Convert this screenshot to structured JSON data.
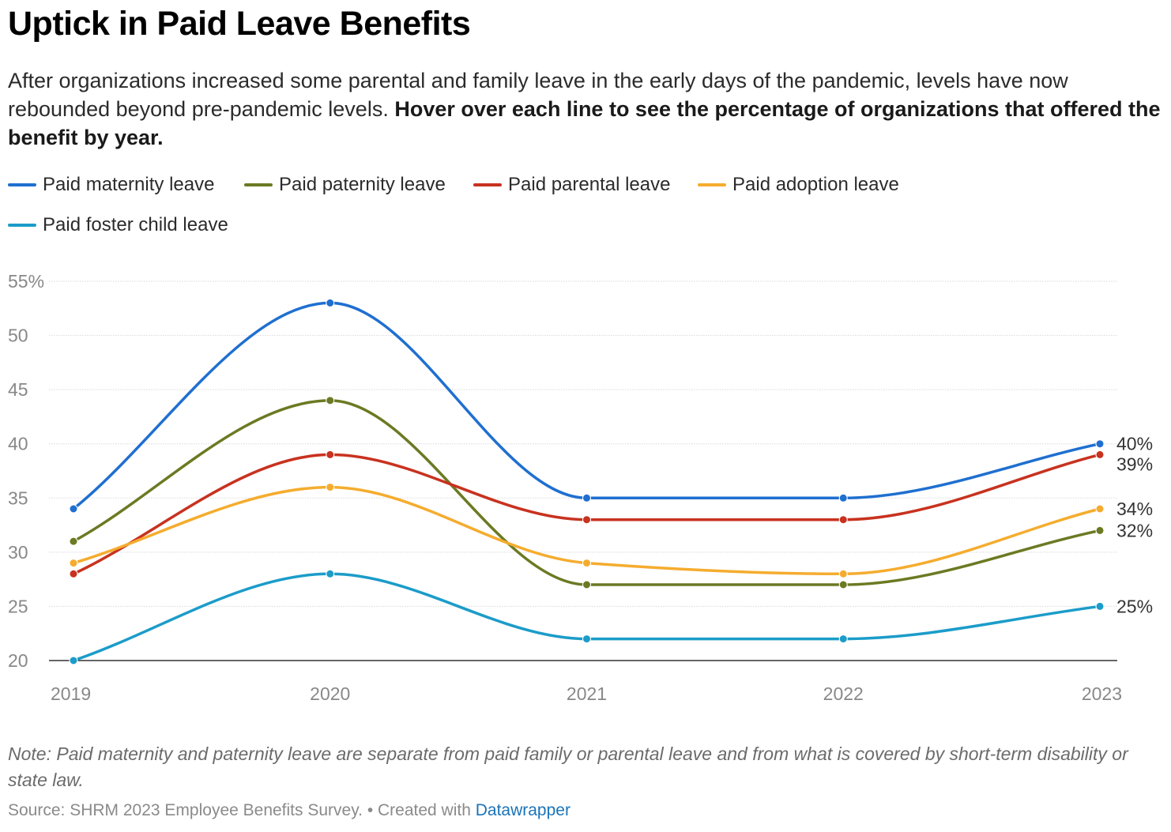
{
  "title": "Uptick in Paid Leave Benefits",
  "subtitle_plain": "After organizations increased some parental and family leave in the early days of the pandemic, levels have now rebounded beyond pre-pandemic levels. ",
  "subtitle_bold": "Hover over each line to see the percentage of organizations that offered the benefit by year.",
  "note": "Note: Paid maternity and paternity leave are separate from paid family or parental leave and from what is covered by short-term disability or state law.",
  "source_text": "Source: SHRM 2023 Employee Benefits Survey. • Created with ",
  "source_link": "Datawrapper",
  "chart_data": {
    "type": "line",
    "x": [
      "2019",
      "2020",
      "2021",
      "2022",
      "2023"
    ],
    "ylim": [
      20,
      55
    ],
    "yticks": [
      20,
      25,
      30,
      35,
      40,
      45,
      50,
      55
    ],
    "ytick_labels": [
      "20",
      "25",
      "30",
      "35",
      "40",
      "45",
      "50",
      "55%"
    ],
    "grid": true,
    "legend_position": "top-left",
    "series": [
      {
        "name": "Paid maternity leave",
        "color": "#1f6fd0",
        "values": [
          34,
          53,
          35,
          35,
          40
        ],
        "end_label": "40%"
      },
      {
        "name": "Paid paternity leave",
        "color": "#6b7a23",
        "values": [
          31,
          44,
          27,
          27,
          32
        ],
        "end_label": "32%"
      },
      {
        "name": "Paid parental leave",
        "color": "#c8321f",
        "values": [
          28,
          39,
          33,
          33,
          39
        ],
        "end_label": "39%"
      },
      {
        "name": "Paid adoption leave",
        "color": "#f5ac2e",
        "values": [
          29,
          36,
          29,
          28,
          34
        ],
        "end_label": "34%"
      },
      {
        "name": "Paid foster child leave",
        "color": "#1b9cc9",
        "values": [
          20,
          28,
          22,
          22,
          25
        ],
        "end_label": "25%"
      }
    ]
  }
}
